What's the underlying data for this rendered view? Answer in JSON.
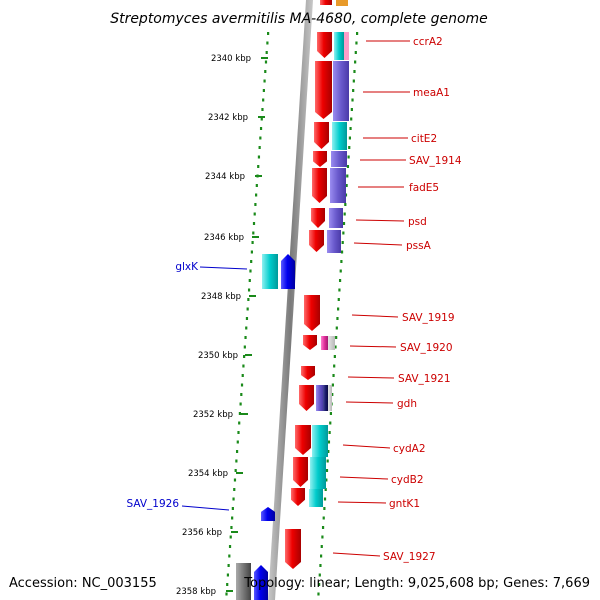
{
  "title": "Streptomyces avermitilis MA-4680, complete genome",
  "accession": "Accession: NC_003155",
  "summary": "Topology: linear; Length: 9,025,608 bp; Genes: 7,669",
  "ticks": [
    "2340 kbp",
    "2342 kbp",
    "2344 kbp",
    "2346 kbp",
    "2348 kbp",
    "2350 kbp",
    "2352 kbp",
    "2354 kbp",
    "2356 kbp",
    "2358 kbp"
  ],
  "right_labels": [
    "ccrA2",
    "meaA1",
    "citE2",
    "SAV_1914",
    "fadE5",
    "psd",
    "pssA",
    "SAV_1919",
    "SAV_1920",
    "SAV_1921",
    "gdh",
    "cydA2",
    "cydB2",
    "gntK1",
    "SAV_1927"
  ],
  "left_labels": [
    "glxK",
    "SAV_1926"
  ],
  "colors": {
    "strand_red": "#ee0000",
    "strand_blue": "#0000ee",
    "annotation_cyan": "#00cccc",
    "annotation_purple": "#6a5acd",
    "label_red": "#cc0000",
    "label_blue": "#0000cc",
    "dots_green": "#1a8a1a",
    "axis_gray": "#888888"
  }
}
